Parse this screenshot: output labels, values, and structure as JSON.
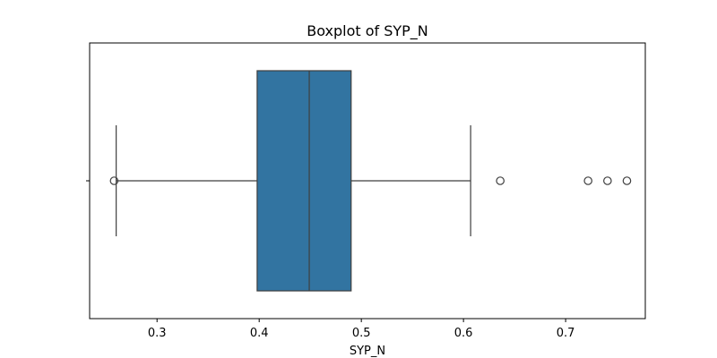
{
  "chart_data": {
    "type": "box",
    "title": "Boxplot of SYP_N",
    "xlabel": "SYP_N",
    "ylabel": "",
    "orientation": "horizontal",
    "xlim": [
      0.234,
      0.778
    ],
    "xticks": [
      0.3,
      0.4,
      0.5,
      0.6,
      0.7
    ],
    "xtick_labels": [
      "0.3",
      "0.4",
      "0.5",
      "0.6",
      "0.7"
    ],
    "box": {
      "whisker_low": 0.26,
      "q1": 0.398,
      "median": 0.449,
      "q3": 0.49,
      "whisker_high": 0.607
    },
    "outliers": [
      0.258,
      0.636,
      0.722,
      0.741,
      0.76
    ],
    "grid": false,
    "legend": "none"
  },
  "colors": {
    "box_fill": "#3274a1",
    "line": "#3f3f3f",
    "axis": "#000000",
    "background": "#ffffff"
  }
}
